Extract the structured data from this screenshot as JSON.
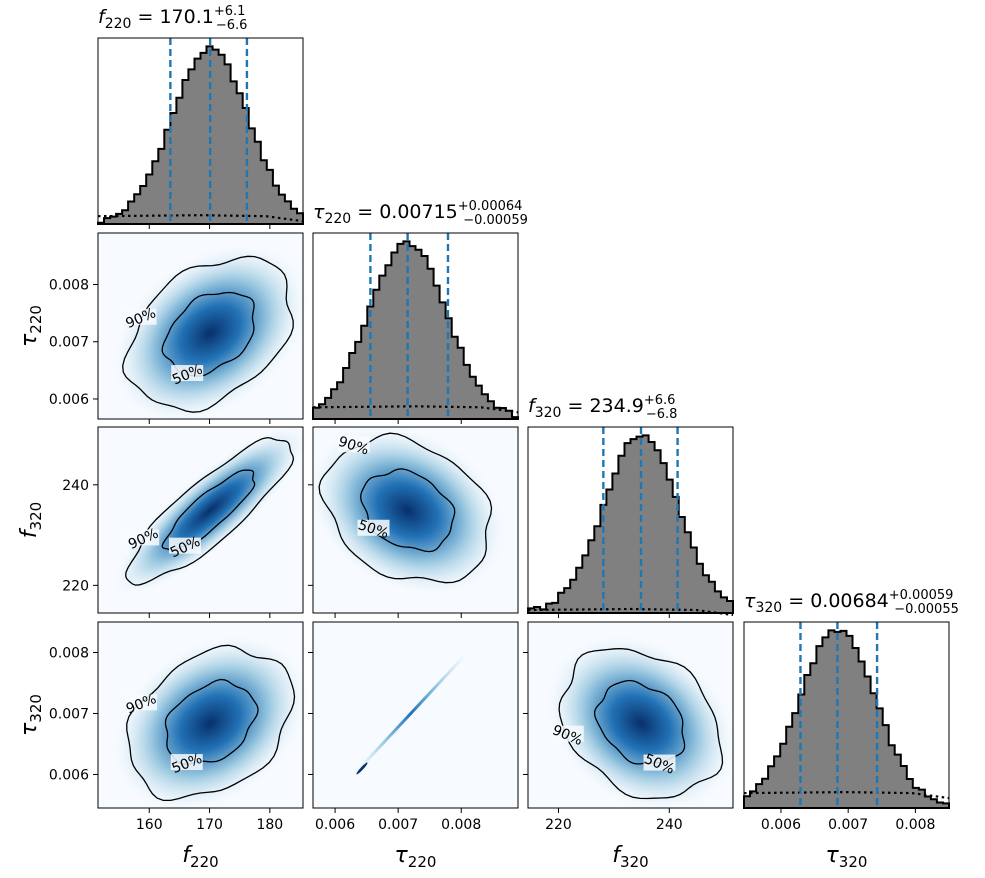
{
  "chart_data": {
    "type": "corner",
    "parameters": [
      {
        "key": "f220",
        "symbol": "f",
        "sub": "220",
        "range": [
          151.5,
          185.5
        ],
        "ticks": [
          "160",
          "170",
          "180"
        ],
        "tick_values": [
          160,
          170,
          180
        ],
        "median": 170.1,
        "upper": "+6.1",
        "lower": "−6.6",
        "q_low": 163.5,
        "q_high": 176.2,
        "title_value": "170.1"
      },
      {
        "key": "tau220",
        "symbol": "τ",
        "sub": "220",
        "range": [
          0.00565,
          0.0089
        ],
        "ticks": [
          "0.006",
          "0.007",
          "0.008"
        ],
        "tick_values": [
          0.006,
          0.007,
          0.008
        ],
        "median": 0.00715,
        "upper": "+0.00064",
        "lower": "−0.00059",
        "q_low": 0.00656,
        "q_high": 0.00779,
        "title_value": "0.00715"
      },
      {
        "key": "f320",
        "symbol": "f",
        "sub": "320",
        "range": [
          214.5,
          251.5
        ],
        "ticks": [
          "220",
          "240"
        ],
        "tick_values": [
          220,
          240
        ],
        "median": 234.9,
        "upper": "+6.6",
        "lower": "−6.8",
        "q_low": 228.1,
        "q_high": 241.5,
        "title_value": "234.9"
      },
      {
        "key": "tau320",
        "symbol": "τ",
        "sub": "320",
        "range": [
          0.00545,
          0.0085
        ],
        "ticks": [
          "0.006",
          "0.007",
          "0.008"
        ],
        "tick_values": [
          0.006,
          0.007,
          0.008
        ],
        "median": 0.00684,
        "upper": "+0.00059",
        "lower": "−0.00055",
        "q_low": 0.00629,
        "q_high": 0.00743,
        "title_value": "0.00684"
      }
    ],
    "contour_levels": [
      "50%",
      "90%"
    ],
    "correlations": {
      "1-0": 0.35,
      "2-0": 0.85,
      "2-1": -0.25,
      "3-0": 0.3,
      "3-1": 0.999,
      "3-2": -0.25
    },
    "colors": {
      "hist_fill": "#808080",
      "quantile_line": "#1f77b4",
      "density_dark": "#08306b",
      "density_mid": "#2171b5",
      "density_light": "#c6dbef",
      "background": "#f7fbff"
    }
  }
}
